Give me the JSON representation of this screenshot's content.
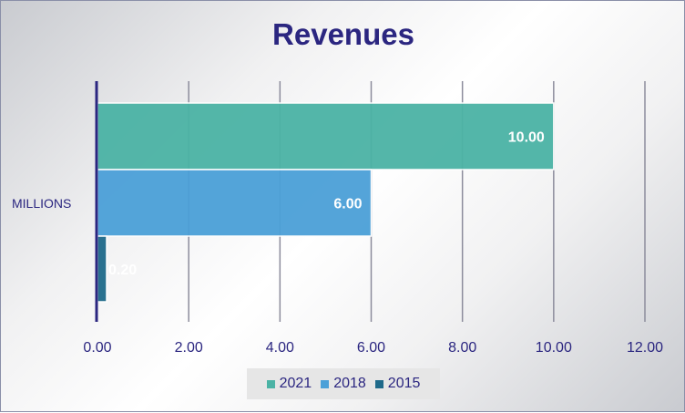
{
  "chart_data": {
    "type": "bar",
    "orientation": "horizontal",
    "title": "Revenues",
    "categories": [
      "MILLIONS"
    ],
    "series": [
      {
        "name": "2021",
        "values": [
          10.0
        ],
        "label": "10.00",
        "color": "#4bb3a5"
      },
      {
        "name": "2018",
        "values": [
          6.0
        ],
        "label": "6.00",
        "color": "#4ba0d8"
      },
      {
        "name": "2015",
        "values": [
          0.2
        ],
        "label": "0.20",
        "color": "#1f6a8a"
      }
    ],
    "xlim": [
      0,
      12
    ],
    "xticks": [
      "0.00",
      "2.00",
      "4.00",
      "6.00",
      "8.00",
      "10.00",
      "12.00"
    ],
    "grid": true,
    "legend_position": "bottom",
    "axis_color": "#2b2680"
  }
}
